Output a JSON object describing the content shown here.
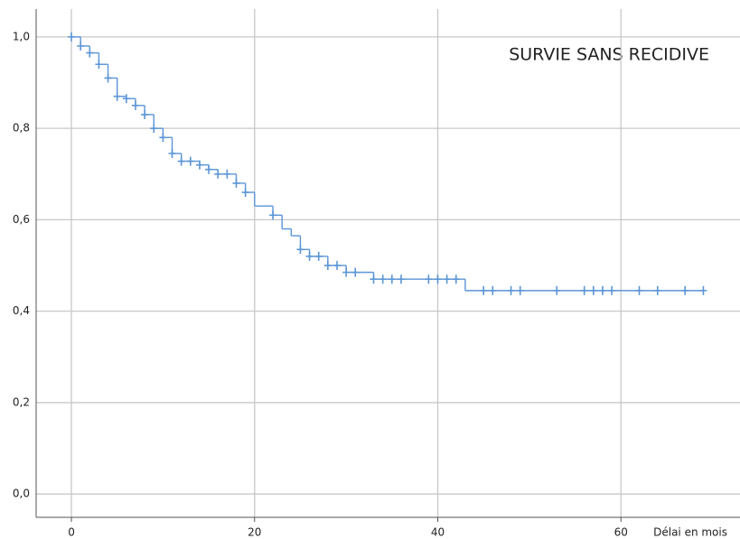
{
  "chart_data": {
    "type": "step",
    "title": "SURVIE SANS RECIDIVE",
    "x_label": "Délai en mois",
    "color": "#5b95d6",
    "grid": true,
    "xlim": [
      -3.85,
      73
    ],
    "ylim": [
      -0.051,
      1.061
    ],
    "xticks": [
      0,
      20,
      40,
      60
    ],
    "yticks": [
      {
        "value": 0,
        "label": "0,0"
      },
      {
        "value": 0.2,
        "label": "0,2"
      },
      {
        "value": 0.4,
        "label": "0,4"
      },
      {
        "value": 0.6,
        "label": "0,6"
      },
      {
        "value": 0.8,
        "label": "0,8"
      },
      {
        "value": 1,
        "label": "1,0"
      }
    ],
    "x": [
      0,
      1,
      2,
      3,
      4,
      5,
      6,
      7,
      8,
      9,
      10,
      11,
      12,
      14,
      15,
      16,
      18,
      19,
      20,
      22,
      23,
      24,
      25,
      26,
      28,
      30,
      33,
      43
    ],
    "values": [
      1.0,
      0.98,
      0.965,
      0.94,
      0.91,
      0.87,
      0.865,
      0.85,
      0.83,
      0.8,
      0.78,
      0.745,
      0.728,
      0.72,
      0.71,
      0.7,
      0.68,
      0.66,
      0.63,
      0.61,
      0.58,
      0.565,
      0.535,
      0.52,
      0.5,
      0.485,
      0.47,
      0.445
    ],
    "censored_x": [
      0,
      1,
      2,
      3,
      4,
      5,
      6,
      7,
      8,
      9,
      10,
      11,
      12,
      13,
      14,
      15,
      16,
      17,
      18,
      19,
      22,
      25,
      26,
      27,
      28,
      29,
      30,
      31,
      33,
      34,
      35,
      36,
      39,
      40,
      41,
      42,
      45,
      46,
      48,
      49,
      53,
      56,
      57,
      58,
      59,
      62,
      64,
      67,
      69
    ],
    "censored_values": [
      1.0,
      0.98,
      0.965,
      0.94,
      0.91,
      0.87,
      0.865,
      0.85,
      0.83,
      0.8,
      0.78,
      0.745,
      0.728,
      0.728,
      0.72,
      0.71,
      0.7,
      0.7,
      0.68,
      0.66,
      0.61,
      0.535,
      0.52,
      0.52,
      0.5,
      0.5,
      0.485,
      0.485,
      0.47,
      0.47,
      0.47,
      0.47,
      0.47,
      0.47,
      0.47,
      0.47,
      0.445,
      0.445,
      0.445,
      0.445,
      0.445,
      0.445,
      0.445,
      0.445,
      0.445,
      0.445,
      0.445,
      0.445,
      0.445
    ]
  }
}
